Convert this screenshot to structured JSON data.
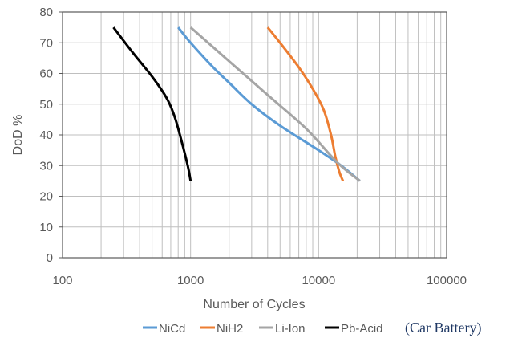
{
  "chart_data": {
    "type": "line",
    "title": "",
    "xlabel": "Number of Cycles",
    "ylabel": "DoD %",
    "x_scale": "log",
    "xlim": [
      100,
      100000
    ],
    "ylim": [
      0,
      80
    ],
    "x_ticks": [
      "100",
      "1000",
      "10000",
      "100000"
    ],
    "y_ticks": [
      "0",
      "10",
      "20",
      "30",
      "40",
      "50",
      "60",
      "70",
      "80"
    ],
    "grid": true,
    "legend_position": "bottom",
    "series": [
      {
        "name": "NiCd",
        "color": "#5b9bd5",
        "points": [
          [
            800,
            75
          ],
          [
            1000,
            70
          ],
          [
            1500,
            62
          ],
          [
            2000,
            57
          ],
          [
            3000,
            50
          ],
          [
            5000,
            43
          ],
          [
            10000,
            35
          ],
          [
            15000,
            30
          ],
          [
            21000,
            25
          ]
        ]
      },
      {
        "name": "NiH2",
        "color": "#ed7d31",
        "points": [
          [
            4000,
            75
          ],
          [
            5000,
            70
          ],
          [
            7000,
            62
          ],
          [
            9000,
            55
          ],
          [
            11000,
            48
          ],
          [
            12500,
            40
          ],
          [
            13500,
            33
          ],
          [
            14500,
            28
          ],
          [
            15500,
            25
          ]
        ]
      },
      {
        "name": "Li-Ion",
        "color": "#a5a5a5",
        "points": [
          [
            1000,
            75
          ],
          [
            2000,
            64
          ],
          [
            4000,
            53
          ],
          [
            8000,
            42
          ],
          [
            14000,
            31
          ],
          [
            21000,
            25
          ]
        ]
      },
      {
        "name": "Pb-Acid",
        "color": "#000000",
        "points": [
          [
            250,
            75
          ],
          [
            350,
            67
          ],
          [
            500,
            59
          ],
          [
            650,
            52
          ],
          [
            750,
            46
          ],
          [
            850,
            38
          ],
          [
            950,
            30
          ],
          [
            1000,
            25
          ]
        ]
      }
    ],
    "annotation": "(Car Battery)"
  }
}
